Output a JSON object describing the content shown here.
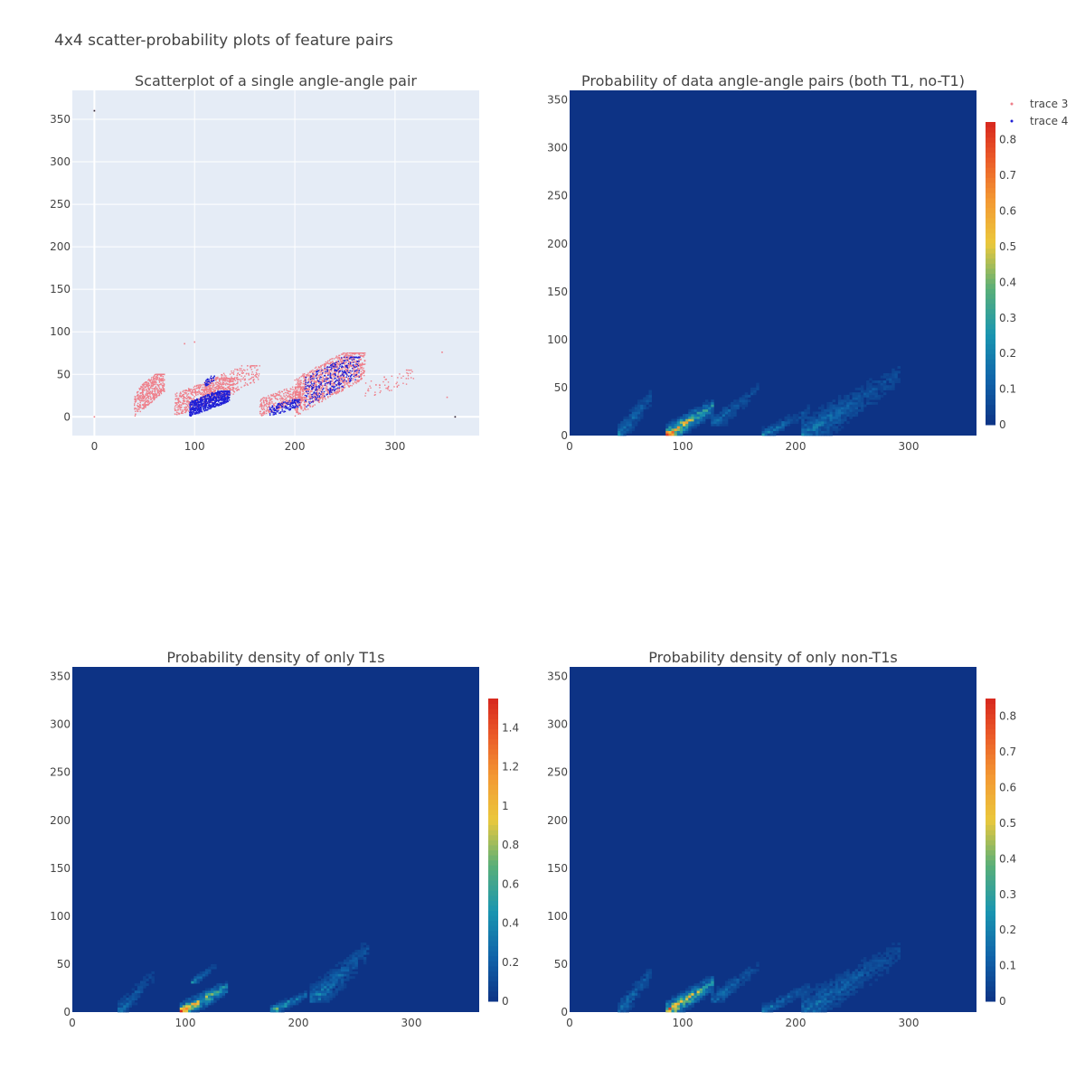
{
  "title": "4x4 scatter-probability plots of feature pairs",
  "colors": {
    "trace3": "#ef7f8a",
    "trace4": "#1f1fd6",
    "scatter_bg": "#e5ecf6",
    "heat_low": "#0d3385",
    "text": "#444444"
  },
  "legend": {
    "entries": [
      "trace 3",
      "trace 4"
    ],
    "placement": "top-right"
  },
  "chart_data": [
    {
      "type": "scatter",
      "title": "Scatterplot of a single angle-angle pair",
      "xlim": [
        -22,
        384
      ],
      "ylim": [
        -22,
        384
      ],
      "x_ticks": [
        "0",
        "100",
        "200",
        "300"
      ],
      "y_ticks": [
        "0",
        "50",
        "100",
        "150",
        "200",
        "250",
        "300",
        "350"
      ],
      "grid": true,
      "series": [
        {
          "name": "trace 3",
          "clusters": [
            {
              "x": [
                40,
                70
              ],
              "y": [
                0,
                50
              ],
              "n": 450
            },
            {
              "x": [
                80,
                140
              ],
              "y": [
                0,
                45
              ],
              "n": 600
            },
            {
              "x": [
                110,
                165
              ],
              "y": [
                15,
                60
              ],
              "n": 250
            },
            {
              "x": [
                165,
                210
              ],
              "y": [
                0,
                35
              ],
              "n": 350
            },
            {
              "x": [
                200,
                270
              ],
              "y": [
                0,
                75
              ],
              "n": 1100
            },
            {
              "x": [
                270,
                320
              ],
              "y": [
                20,
                55
              ],
              "n": 60
            }
          ],
          "points": [
            [
              0,
              360
            ],
            [
              0,
              0
            ],
            [
              360,
              0
            ],
            [
              347,
              76
            ],
            [
              352,
              23
            ],
            [
              90,
              86
            ],
            [
              100,
              88
            ]
          ]
        },
        {
          "name": "trace 4",
          "clusters": [
            {
              "x": [
                95,
                135
              ],
              "y": [
                0,
                30
              ],
              "n": 700
            },
            {
              "x": [
                110,
                120
              ],
              "y": [
                35,
                48
              ],
              "n": 40
            },
            {
              "x": [
                175,
                205
              ],
              "y": [
                0,
                20
              ],
              "n": 150
            },
            {
              "x": [
                210,
                265
              ],
              "y": [
                10,
                70
              ],
              "n": 350
            }
          ],
          "points": [
            [
              0,
              360
            ],
            [
              360,
              0
            ]
          ]
        }
      ]
    },
    {
      "type": "heatmap",
      "title": "Probability of data angle-angle pairs (both T1, no-T1)",
      "xlim": [
        0,
        360
      ],
      "ylim": [
        0,
        360
      ],
      "x_ticks": [
        "0",
        "100",
        "200",
        "300"
      ],
      "y_ticks": [
        "0",
        "50",
        "100",
        "150",
        "200",
        "250",
        "300",
        "350"
      ],
      "zlim": [
        0,
        0.85
      ],
      "colorbar_ticks": [
        "0",
        "0.1",
        "0.2",
        "0.3",
        "0.4",
        "0.5",
        "0.6",
        "0.7",
        "0.8"
      ],
      "blobs": [
        {
          "x": [
            42,
            72
          ],
          "y": [
            0,
            50
          ],
          "peak": 0.22
        },
        {
          "x": [
            85,
            125
          ],
          "y": [
            0,
            35
          ],
          "peak": 0.84
        },
        {
          "x": [
            125,
            165
          ],
          "y": [
            10,
            55
          ],
          "peak": 0.18
        },
        {
          "x": [
            170,
            210
          ],
          "y": [
            0,
            30
          ],
          "peak": 0.22
        },
        {
          "x": [
            205,
            290
          ],
          "y": [
            0,
            75
          ],
          "peak": 0.2
        }
      ]
    },
    {
      "type": "heatmap",
      "title": "Probability density of only T1s",
      "xlim": [
        0,
        360
      ],
      "ylim": [
        0,
        360
      ],
      "x_ticks": [
        "0",
        "100",
        "200",
        "300"
      ],
      "y_ticks": [
        "0",
        "50",
        "100",
        "150",
        "200",
        "250",
        "300",
        "350"
      ],
      "zlim": [
        0,
        1.55
      ],
      "colorbar_ticks": [
        "0",
        "0.2",
        "0.4",
        "0.6",
        "0.8",
        "1",
        "1.2",
        "1.4"
      ],
      "blobs": [
        {
          "x": [
            40,
            70
          ],
          "y": [
            0,
            45
          ],
          "peak": 0.35
        },
        {
          "x": [
            95,
            135
          ],
          "y": [
            0,
            30
          ],
          "peak": 1.45
        },
        {
          "x": [
            105,
            125
          ],
          "y": [
            30,
            50
          ],
          "peak": 0.4
        },
        {
          "x": [
            175,
            205
          ],
          "y": [
            0,
            20
          ],
          "peak": 0.9
        },
        {
          "x": [
            210,
            260
          ],
          "y": [
            10,
            75
          ],
          "peak": 0.45
        }
      ]
    },
    {
      "type": "heatmap",
      "title": "Probability density of only non-T1s",
      "xlim": [
        0,
        360
      ],
      "ylim": [
        0,
        360
      ],
      "x_ticks": [
        "0",
        "100",
        "200",
        "300"
      ],
      "y_ticks": [
        "0",
        "50",
        "100",
        "150",
        "200",
        "250",
        "300",
        "350"
      ],
      "zlim": [
        0,
        0.85
      ],
      "colorbar_ticks": [
        "0",
        "0.1",
        "0.2",
        "0.3",
        "0.4",
        "0.5",
        "0.6",
        "0.7",
        "0.8"
      ],
      "blobs": [
        {
          "x": [
            42,
            72
          ],
          "y": [
            0,
            50
          ],
          "peak": 0.22
        },
        {
          "x": [
            85,
            125
          ],
          "y": [
            0,
            35
          ],
          "peak": 0.84
        },
        {
          "x": [
            125,
            165
          ],
          "y": [
            10,
            55
          ],
          "peak": 0.18
        },
        {
          "x": [
            170,
            210
          ],
          "y": [
            0,
            30
          ],
          "peak": 0.22
        },
        {
          "x": [
            205,
            290
          ],
          "y": [
            0,
            75
          ],
          "peak": 0.2
        }
      ]
    }
  ]
}
